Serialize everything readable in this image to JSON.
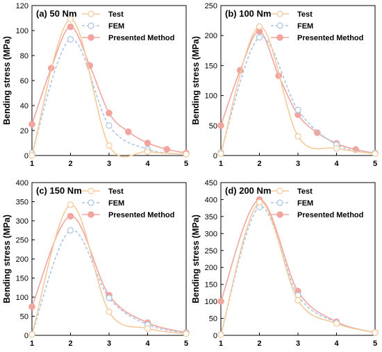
{
  "figure": {
    "x_ticks": [
      "1",
      "2",
      "3",
      "4",
      "5"
    ]
  },
  "chart_data": [
    {
      "type": "line",
      "title": "(a) 50 Nm",
      "xlabel": "",
      "ylabel": "Bending stress (MPa)",
      "xlim": [
        1,
        5
      ],
      "ylim": [
        0,
        120
      ],
      "y_ticks": [
        "0",
        "20",
        "40",
        "60",
        "80",
        "100",
        "120"
      ],
      "grid": false,
      "legend_position": "top-right",
      "series": [
        {
          "name": "Test",
          "color": "#f6c99a",
          "marker": "open-circle",
          "dashed": false,
          "x": [
            1,
            2,
            3,
            4,
            5
          ],
          "y": [
            0,
            109,
            8,
            3,
            1
          ]
        },
        {
          "name": "FEM",
          "color": "#a9c4e4",
          "marker": "open-circle",
          "dashed": true,
          "x": [
            1,
            2,
            3,
            4,
            5
          ],
          "y": [
            2,
            93,
            24,
            5,
            1
          ]
        },
        {
          "name": "Presented Method",
          "color": "#f2a59f",
          "marker": "filled-circle",
          "dashed": false,
          "x": [
            1,
            1.5,
            2,
            2.5,
            3,
            3.5,
            4,
            4.5,
            5
          ],
          "y": [
            25,
            70,
            103,
            72,
            34,
            19,
            10,
            5,
            2
          ]
        }
      ]
    },
    {
      "type": "line",
      "title": "(b) 100 Nm",
      "xlabel": "",
      "ylabel": "Bending stress (MPa)",
      "xlim": [
        1,
        5
      ],
      "ylim": [
        0,
        250
      ],
      "y_ticks": [
        "0",
        "50",
        "100",
        "150",
        "200",
        "250"
      ],
      "grid": false,
      "legend_position": "top-right",
      "series": [
        {
          "name": "Test",
          "color": "#f6c99a",
          "marker": "open-circle",
          "dashed": false,
          "x": [
            1,
            2,
            3,
            4,
            5
          ],
          "y": [
            3,
            215,
            32,
            12,
            3
          ]
        },
        {
          "name": "FEM",
          "color": "#a9c4e4",
          "marker": "open-circle",
          "dashed": true,
          "x": [
            1,
            2,
            3,
            4,
            5
          ],
          "y": [
            5,
            197,
            76,
            18,
            4
          ]
        },
        {
          "name": "Presented Method",
          "color": "#f2a59f",
          "marker": "filled-circle",
          "dashed": false,
          "x": [
            1,
            1.5,
            2,
            2.5,
            3,
            3.5,
            4,
            4.5,
            5
          ],
          "y": [
            50,
            142,
            207,
            133,
            68,
            38,
            20,
            10,
            4
          ]
        }
      ]
    },
    {
      "type": "line",
      "title": "(c) 150 Nm",
      "xlabel": "",
      "ylabel": "Bending stress (MPa)",
      "xlim": [
        1,
        5
      ],
      "ylim": [
        0,
        400
      ],
      "y_ticks": [
        "0",
        "50",
        "100",
        "150",
        "200",
        "250",
        "300",
        "350",
        "400"
      ],
      "grid": false,
      "legend_position": "top-right",
      "series": [
        {
          "name": "Test",
          "color": "#f6c99a",
          "marker": "open-circle",
          "dashed": false,
          "x": [
            1,
            2,
            3,
            4,
            5
          ],
          "y": [
            2,
            342,
            62,
            18,
            4
          ]
        },
        {
          "name": "FEM",
          "color": "#a9c4e4",
          "marker": "open-circle",
          "dashed": true,
          "x": [
            1,
            2,
            3,
            4,
            5
          ],
          "y": [
            3,
            275,
            98,
            28,
            6
          ]
        },
        {
          "name": "Presented Method",
          "color": "#f2a59f",
          "marker": "filled-circle",
          "dashed": false,
          "x": [
            1,
            2,
            3,
            4,
            5
          ],
          "y": [
            75,
            312,
            105,
            33,
            7
          ]
        }
      ]
    },
    {
      "type": "line",
      "title": "(d) 200 Nm",
      "xlabel": "",
      "ylabel": "Bending stress (MPa)",
      "xlim": [
        1,
        5
      ],
      "ylim": [
        0,
        450
      ],
      "y_ticks": [
        "0",
        "50",
        "100",
        "150",
        "200",
        "250",
        "300",
        "350",
        "400",
        "450"
      ],
      "grid": false,
      "legend_position": "top-right",
      "series": [
        {
          "name": "Test",
          "color": "#f6c99a",
          "marker": "open-circle",
          "dashed": false,
          "x": [
            1,
            2,
            3,
            4,
            5
          ],
          "y": [
            2,
            392,
            103,
            35,
            8
          ]
        },
        {
          "name": "FEM",
          "color": "#a9c4e4",
          "marker": "open-circle",
          "dashed": true,
          "x": [
            1,
            2,
            3,
            4,
            5
          ],
          "y": [
            3,
            378,
            118,
            38,
            8
          ]
        },
        {
          "name": "Presented Method",
          "color": "#f2a59f",
          "marker": "filled-circle",
          "dashed": false,
          "x": [
            1,
            2,
            3,
            4,
            5
          ],
          "y": [
            100,
            400,
            130,
            40,
            8
          ]
        }
      ]
    }
  ]
}
